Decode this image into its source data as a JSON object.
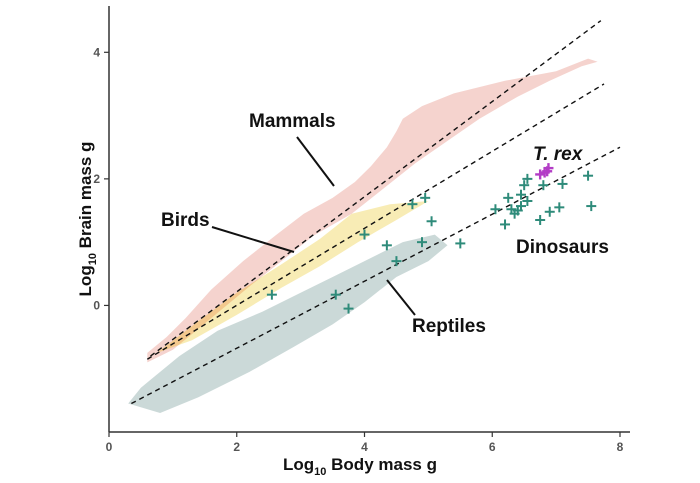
{
  "chart_data": {
    "type": "scatter",
    "title": "",
    "xlabel": {
      "prefix": "Log",
      "sub": "10",
      "suffix": " Body mass g"
    },
    "ylabel": {
      "prefix": "Log",
      "sub": "10",
      "suffix": " Brain mass g"
    },
    "xlim": [
      0,
      8
    ],
    "ylim": [
      -2,
      4.7
    ],
    "x_ticks": [
      0,
      2,
      4,
      6,
      8
    ],
    "y_ticks": [
      0,
      2,
      4
    ],
    "grid": false,
    "colors": {
      "mammals": "#f2c4be",
      "birds": "#f7e9a8",
      "birds_overlap": "#f2c48a",
      "reptiles": "#b9cccb",
      "dinosaurs": "#2e8b7a",
      "trex": "#b33dc6",
      "line": "#111111"
    },
    "regions": [
      {
        "name": "Mammals",
        "points": [
          [
            0.6,
            -0.9
          ],
          [
            1.0,
            -0.7
          ],
          [
            1.6,
            -0.2
          ],
          [
            2.2,
            0.3
          ],
          [
            2.7,
            0.7
          ],
          [
            3.2,
            1.1
          ],
          [
            3.8,
            1.45
          ],
          [
            4.3,
            1.85
          ],
          [
            4.8,
            2.25
          ],
          [
            5.3,
            2.6
          ],
          [
            5.8,
            2.95
          ],
          [
            6.4,
            3.3
          ],
          [
            6.9,
            3.55
          ],
          [
            7.4,
            3.78
          ],
          [
            7.65,
            3.85
          ],
          [
            7.5,
            3.9
          ],
          [
            7.0,
            3.7
          ],
          [
            6.2,
            3.55
          ],
          [
            5.4,
            3.35
          ],
          [
            4.9,
            3.15
          ],
          [
            4.6,
            2.95
          ],
          [
            4.5,
            2.75
          ],
          [
            4.35,
            2.5
          ],
          [
            4.1,
            2.2
          ],
          [
            3.85,
            1.95
          ],
          [
            3.5,
            1.7
          ],
          [
            3.05,
            1.45
          ],
          [
            2.6,
            1.1
          ],
          [
            2.1,
            0.7
          ],
          [
            1.6,
            0.25
          ],
          [
            1.2,
            -0.2
          ],
          [
            0.9,
            -0.5
          ],
          [
            0.6,
            -0.75
          ]
        ]
      },
      {
        "name": "Birds",
        "points": [
          [
            0.75,
            -0.75
          ],
          [
            1.4,
            -0.25
          ],
          [
            2.0,
            0.2
          ],
          [
            2.7,
            0.65
          ],
          [
            3.3,
            1.05
          ],
          [
            3.8,
            1.45
          ],
          [
            4.4,
            1.6
          ],
          [
            5.0,
            1.65
          ],
          [
            4.5,
            1.35
          ],
          [
            3.9,
            1.0
          ],
          [
            3.3,
            0.62
          ],
          [
            2.7,
            0.28
          ],
          [
            2.0,
            -0.15
          ],
          [
            1.3,
            -0.55
          ],
          [
            0.75,
            -0.75
          ]
        ]
      },
      {
        "name": "Reptiles",
        "points": [
          [
            0.3,
            -1.55
          ],
          [
            0.8,
            -1.7
          ],
          [
            1.4,
            -1.45
          ],
          [
            2.2,
            -1.05
          ],
          [
            2.9,
            -0.65
          ],
          [
            3.5,
            -0.3
          ],
          [
            4.0,
            0.05
          ],
          [
            4.5,
            0.45
          ],
          [
            5.0,
            0.7
          ],
          [
            5.3,
            0.95
          ],
          [
            5.1,
            1.12
          ],
          [
            4.6,
            1.0
          ],
          [
            4.0,
            0.7
          ],
          [
            3.5,
            0.45
          ],
          [
            3.0,
            0.2
          ],
          [
            2.4,
            -0.1
          ],
          [
            1.7,
            -0.4
          ],
          [
            1.1,
            -0.8
          ],
          [
            0.5,
            -1.3
          ],
          [
            0.3,
            -1.55
          ]
        ]
      }
    ],
    "lines": [
      {
        "x": [
          0.65,
          7.7
        ],
        "y": [
          -0.8,
          4.5
        ]
      },
      {
        "x": [
          0.6,
          7.75
        ],
        "y": [
          -0.85,
          3.5
        ]
      },
      {
        "x": [
          0.35,
          8.0
        ],
        "y": [
          -1.55,
          2.5
        ]
      }
    ],
    "dinosaurs": [
      [
        2.55,
        0.17
      ],
      [
        3.55,
        0.17
      ],
      [
        3.75,
        -0.05
      ],
      [
        4.0,
        1.12
      ],
      [
        4.35,
        0.95
      ],
      [
        4.5,
        0.7
      ],
      [
        4.9,
        1.0
      ],
      [
        5.05,
        1.33
      ],
      [
        5.5,
        0.98
      ],
      [
        4.75,
        1.6
      ],
      [
        4.95,
        1.7
      ],
      [
        6.05,
        1.52
      ],
      [
        6.2,
        1.28
      ],
      [
        6.3,
        1.52
      ],
      [
        6.35,
        1.45
      ],
      [
        6.4,
        1.5
      ],
      [
        6.45,
        1.57
      ],
      [
        6.55,
        1.65
      ],
      [
        6.25,
        1.7
      ],
      [
        6.45,
        1.75
      ],
      [
        6.5,
        1.9
      ],
      [
        6.55,
        2.0
      ],
      [
        6.75,
        1.35
      ],
      [
        6.9,
        1.48
      ],
      [
        7.05,
        1.55
      ],
      [
        7.1,
        1.92
      ],
      [
        7.5,
        2.05
      ],
      [
        7.55,
        1.57
      ],
      [
        6.8,
        1.9
      ]
    ],
    "trex": [
      [
        6.75,
        2.07
      ],
      [
        6.82,
        2.1
      ],
      [
        6.86,
        2.12
      ],
      [
        6.88,
        2.17
      ]
    ],
    "labels": {
      "mammals": "Mammals",
      "birds": "Birds",
      "reptiles": "Reptiles",
      "dinosaurs": "Dinosaurs",
      "trex": "T. rex"
    }
  }
}
